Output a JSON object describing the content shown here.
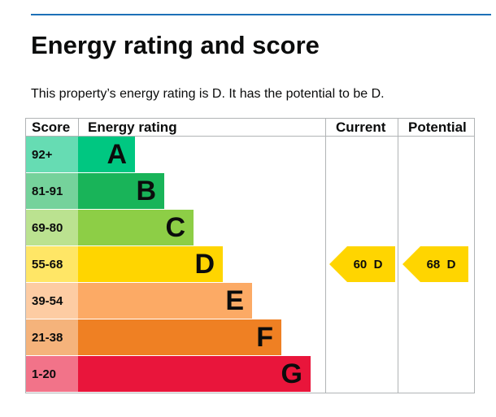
{
  "heading": "Energy rating and score",
  "summary": "This property’s energy rating is D. It has the potential to be D.",
  "colors": {
    "rule": "#1d70b8",
    "text": "#0b0c0c",
    "gridline": "#b1b4b6"
  },
  "chart_data": {
    "type": "bar",
    "title": "",
    "headers": {
      "score": "Score",
      "rating": "Energy rating",
      "current": "Current",
      "potential": "Potential"
    },
    "bands": [
      {
        "score_range": "92+",
        "band": "A",
        "bar_color": "#00c781",
        "score_bg": "#66dcb3"
      },
      {
        "score_range": "81-91",
        "band": "B",
        "bar_color": "#19b459",
        "score_bg": "#75d29b"
      },
      {
        "score_range": "69-80",
        "band": "C",
        "bar_color": "#8dce46",
        "score_bg": "#bbe290"
      },
      {
        "score_range": "55-68",
        "band": "D",
        "bar_color": "#ffd500",
        "score_bg": "#ffe666"
      },
      {
        "score_range": "39-54",
        "band": "E",
        "bar_color": "#fcaa65",
        "score_bg": "#fdcca3"
      },
      {
        "score_range": "21-38",
        "band": "F",
        "bar_color": "#ef8023",
        "score_bg": "#f5b37b"
      },
      {
        "score_range": "1-20",
        "band": "G",
        "bar_color": "#e9153b",
        "score_bg": "#f27389"
      }
    ],
    "current": {
      "value": 60,
      "band": "D",
      "label": "60  D"
    },
    "potential": {
      "value": 68,
      "band": "D",
      "label": "68  D"
    }
  }
}
